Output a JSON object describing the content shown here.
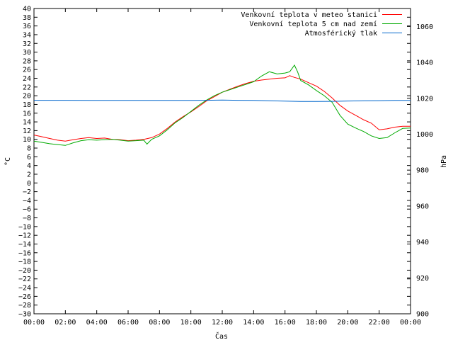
{
  "chart_data": {
    "type": "line",
    "title": "",
    "xlabel": "Čas",
    "ylabel": "°C",
    "y2label": "hPa",
    "xlim": [
      0,
      24
    ],
    "ylim": [
      -30,
      40
    ],
    "y2lim": [
      900,
      1070
    ],
    "grid": false,
    "legend_position": "top-right",
    "x_ticks": [
      0,
      2,
      4,
      6,
      8,
      10,
      12,
      14,
      16,
      18,
      20,
      22,
      24
    ],
    "x_tick_labels": [
      "00:00",
      "02:00",
      "04:00",
      "06:00",
      "08:00",
      "10:00",
      "12:00",
      "14:00",
      "16:00",
      "18:00",
      "20:00",
      "22:00",
      "00:00"
    ],
    "y_ticks": [
      40,
      38,
      36,
      34,
      32,
      30,
      28,
      26,
      24,
      22,
      20,
      18,
      16,
      14,
      12,
      10,
      8,
      6,
      4,
      2,
      0,
      -2,
      -4,
      -6,
      -8,
      -10,
      -12,
      -14,
      -16,
      -18,
      -20,
      -22,
      -24,
      -26,
      -28,
      -30
    ],
    "y2_ticks": [
      1060,
      1040,
      1020,
      1000,
      980,
      960,
      940,
      920,
      900
    ],
    "series": [
      {
        "name": "Venkovní teplota v meteo stanici",
        "color": "#ff0000",
        "axis": "left",
        "x": [
          0,
          0.5,
          1,
          1.5,
          2,
          2.5,
          3,
          3.5,
          4,
          4.5,
          5,
          5.5,
          6,
          6.5,
          7,
          7.5,
          8,
          8.5,
          9,
          9.5,
          10,
          10.5,
          11,
          11.5,
          12,
          12.5,
          13,
          13.5,
          14,
          14.5,
          15,
          15.5,
          16,
          16.3,
          16.6,
          17,
          17.5,
          18,
          18.5,
          19,
          19.5,
          20,
          20.5,
          21,
          21.5,
          22,
          22.5,
          23,
          23.5,
          24
        ],
        "y": [
          11,
          10.6,
          10.2,
          9.8,
          9.6,
          9.9,
          10.2,
          10.4,
          10.2,
          10.3,
          10,
          9.9,
          9.7,
          9.8,
          10,
          10.4,
          11.2,
          12.5,
          14,
          15.2,
          16.3,
          17.5,
          18.8,
          19.8,
          20.8,
          21.5,
          22.2,
          22.8,
          23.3,
          23.6,
          23.8,
          24,
          24.1,
          24.6,
          24.2,
          23.8,
          23,
          22.2,
          21,
          19.5,
          17.8,
          16.5,
          15.5,
          14.5,
          13.7,
          12.2,
          12.4,
          12.8,
          13,
          13
        ]
      },
      {
        "name": "Venkovní teplota 5 cm nad zemí",
        "color": "#00aa00",
        "axis": "left",
        "x": [
          0,
          0.5,
          1,
          1.5,
          2,
          2.5,
          3,
          3.5,
          4,
          4.5,
          5,
          5.5,
          6,
          6.5,
          7,
          7.2,
          7.5,
          8,
          8.5,
          9,
          9.5,
          10,
          10.5,
          11,
          11.5,
          12,
          12.5,
          13,
          13.5,
          14,
          14.5,
          15,
          15.5,
          16,
          16.3,
          16.6,
          16.8,
          17,
          17.5,
          18,
          18.5,
          19,
          19.5,
          20,
          20.5,
          21,
          21.5,
          22,
          22.5,
          23,
          23.5,
          24
        ],
        "y": [
          9.6,
          9.3,
          9,
          8.8,
          8.6,
          9.2,
          9.7,
          9.9,
          9.8,
          9.9,
          10,
          9.8,
          9.6,
          9.7,
          9.8,
          8.9,
          10,
          10.8,
          12.2,
          13.8,
          15,
          16.4,
          17.8,
          19,
          20,
          20.8,
          21.4,
          22,
          22.6,
          23.2,
          24.5,
          25.5,
          25,
          25.2,
          25.5,
          27,
          25.5,
          23.5,
          22.5,
          21.2,
          20,
          18.5,
          15.5,
          13.5,
          12.6,
          11.8,
          10.8,
          10.2,
          10.4,
          11.5,
          12.5,
          12.6
        ]
      },
      {
        "name": "Atmosférický tlak",
        "color": "#0066cc",
        "axis": "right",
        "x": [
          0,
          2,
          4,
          6,
          8,
          10,
          11,
          12,
          13,
          14,
          15,
          16,
          17,
          18,
          19,
          20,
          21,
          22,
          23,
          24
        ],
        "y": [
          1018.9,
          1018.9,
          1018.8,
          1018.8,
          1018.8,
          1018.8,
          1018.9,
          1019.0,
          1018.9,
          1018.8,
          1018.6,
          1018.4,
          1018.2,
          1018.2,
          1018.3,
          1018.5,
          1018.6,
          1018.7,
          1018.8,
          1018.8
        ]
      }
    ]
  }
}
